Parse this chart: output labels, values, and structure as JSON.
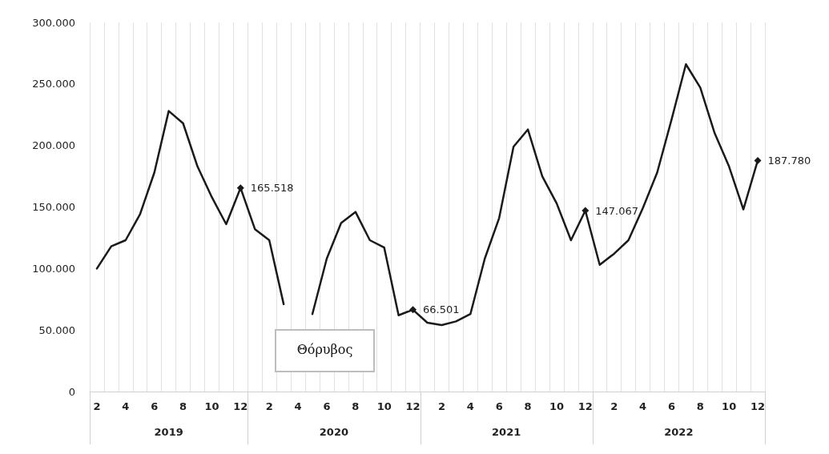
{
  "chart_data": {
    "type": "line",
    "categories": [
      "2",
      null,
      "4",
      null,
      "6",
      null,
      "8",
      null,
      "10",
      null,
      "12",
      null,
      "2",
      null,
      "4",
      null,
      "6",
      null,
      "8",
      null,
      "10",
      null,
      "12",
      null,
      "2",
      null,
      "4",
      null,
      "6",
      null,
      "8",
      null,
      "10",
      null,
      "12",
      null,
      "2",
      null,
      "4",
      null,
      "6",
      null,
      "8",
      null,
      "10",
      null,
      "12"
    ],
    "series": [
      {
        "color": "#1a1a1a",
        "values": [
          100000,
          118000,
          123000,
          144000,
          178000,
          228000,
          218000,
          183000,
          158000,
          136000,
          165518,
          132000,
          123000,
          71000,
          null,
          63000,
          108000,
          137000,
          146000,
          123000,
          117000,
          62000,
          66501,
          56000,
          54000,
          57000,
          63000,
          108000,
          141000,
          199000,
          213000,
          175000,
          153000,
          123000,
          147067,
          103000,
          112000,
          123000,
          149000,
          178000,
          221000,
          266000,
          247000,
          210000,
          183000,
          148000,
          187780
        ],
        "value_labels": [
          null,
          null,
          null,
          null,
          null,
          null,
          null,
          null,
          null,
          null,
          "165.518",
          null,
          null,
          null,
          null,
          null,
          null,
          null,
          null,
          null,
          null,
          null,
          "66.501",
          null,
          null,
          null,
          null,
          null,
          null,
          null,
          null,
          null,
          null,
          null,
          "147.067",
          null,
          null,
          null,
          null,
          null,
          null,
          null,
          null,
          null,
          null,
          null,
          "187.780"
        ]
      }
    ],
    "ylim": [
      0,
      300000
    ],
    "yticks": [
      {
        "value": 0,
        "label": "0"
      },
      {
        "value": 50000,
        "label": "50.000"
      },
      {
        "value": 100000,
        "label": "100.000"
      },
      {
        "value": 150000,
        "label": "150.000"
      },
      {
        "value": 200000,
        "label": "200.000"
      },
      {
        "value": 250000,
        "label": "250.000"
      },
      {
        "value": 300000,
        "label": "300.000"
      }
    ],
    "grid": "x",
    "line_style": "solid",
    "annotations": [
      "2019",
      "2020",
      "2021",
      "2022",
      "Θόρυβος"
    ]
  }
}
